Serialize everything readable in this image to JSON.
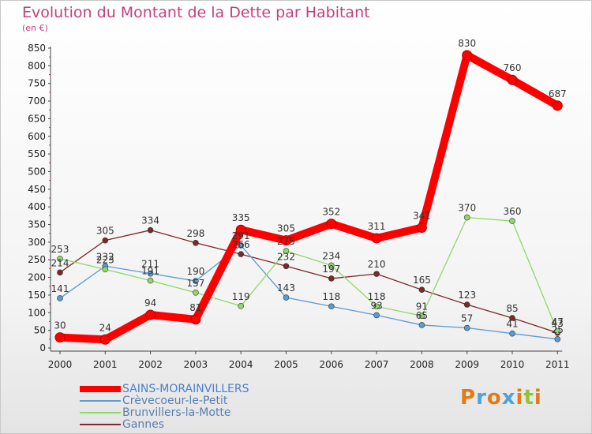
{
  "title": "Evolution du Montant de la Dette par Habitant",
  "unit": "(en €)",
  "logo": "Proxiti",
  "chart_data": {
    "type": "line",
    "x": [
      "2000",
      "2001",
      "2002",
      "2003",
      "2004",
      "2005",
      "2006",
      "2007",
      "2008",
      "2009",
      "2010",
      "2011"
    ],
    "ylim": [
      0,
      850
    ],
    "yticks": [
      0,
      50,
      100,
      150,
      200,
      250,
      300,
      350,
      400,
      450,
      500,
      550,
      600,
      650,
      700,
      750,
      800,
      850
    ],
    "grid": false,
    "legend": "bottom-left",
    "series": [
      {
        "name": "SAINS-MORAINVILLERS",
        "color": "#ff0000",
        "thick": true,
        "values": [
          30,
          24,
          94,
          81,
          335,
          305,
          352,
          311,
          341,
          830,
          760,
          687
        ],
        "labels": [
          "30",
          "24",
          "94",
          "81",
          "335",
          "305",
          "352",
          "311",
          "341",
          "830",
          "760",
          "687"
        ]
      },
      {
        "name": "Crèvecoeur-le-Petit",
        "color": "#5b9bd5",
        "values": [
          141,
          232,
          211,
          190,
          291,
          143,
          118,
          93,
          65,
          57,
          41,
          25
        ],
        "labels": [
          "141",
          "232",
          "211",
          "190",
          "291",
          "143",
          "118",
          "93",
          "65",
          "57",
          "41",
          "25"
        ]
      },
      {
        "name": "Brunvillers-la-Motte",
        "color": "#8fd86a",
        "values": [
          253,
          223,
          191,
          157,
          119,
          275,
          234,
          118,
          91,
          370,
          360,
          47
        ],
        "labels": [
          "253",
          "223",
          "191",
          "157",
          "119",
          "275",
          "234",
          "118",
          "91",
          "370",
          "360",
          "47"
        ]
      },
      {
        "name": "Gannes",
        "color": "#7a2a2a",
        "values": [
          214,
          305,
          334,
          298,
          266,
          232,
          197,
          210,
          165,
          123,
          85,
          43
        ],
        "labels": [
          "214",
          "305",
          "334",
          "298",
          "266",
          "232",
          "197",
          "210",
          "165",
          "123",
          "85",
          "43"
        ]
      }
    ]
  }
}
